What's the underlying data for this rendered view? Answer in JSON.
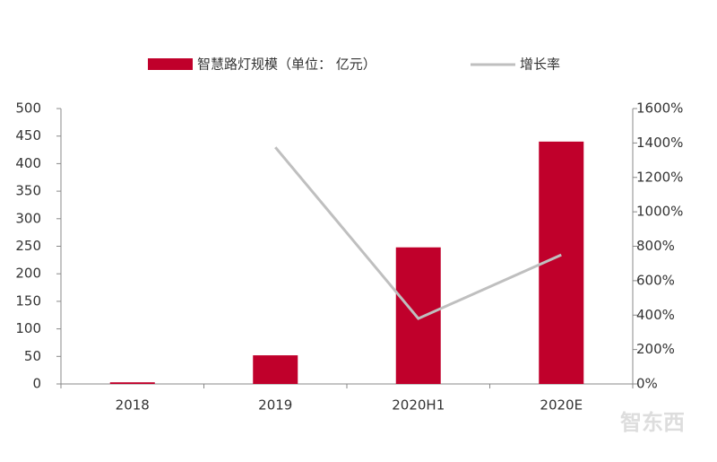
{
  "chart_data": {
    "type": "bar-line",
    "categories": [
      "2018",
      "2019",
      "2020H1",
      "2020E"
    ],
    "series": [
      {
        "name": "智慧路灯规模（单位： 亿元）",
        "type": "bar",
        "color": "#c0002b",
        "values": [
          3,
          52,
          248,
          440
        ]
      },
      {
        "name": "增长率",
        "type": "line",
        "color": "#bfbfbf",
        "axis": "y2",
        "values": [
          null,
          1375,
          380,
          750
        ]
      }
    ],
    "ylim": [
      0,
      500
    ],
    "yticks": [
      0,
      50,
      100,
      150,
      200,
      250,
      300,
      350,
      400,
      450,
      500
    ],
    "y2lim": [
      0,
      1600
    ],
    "y2ticks": [
      {
        "value": 0,
        "label": "0%"
      },
      {
        "value": 200,
        "label": "200%"
      },
      {
        "value": 400,
        "label": "400%"
      },
      {
        "value": 600,
        "label": "600%"
      },
      {
        "value": 800,
        "label": "800%"
      },
      {
        "value": 1000,
        "label": "1000%"
      },
      {
        "value": 1200,
        "label": "1200%"
      },
      {
        "value": 1400,
        "label": "1400%"
      },
      {
        "value": 1600,
        "label": "1600%"
      }
    ],
    "grid": false,
    "legend": "top",
    "watermark": "智东西"
  }
}
